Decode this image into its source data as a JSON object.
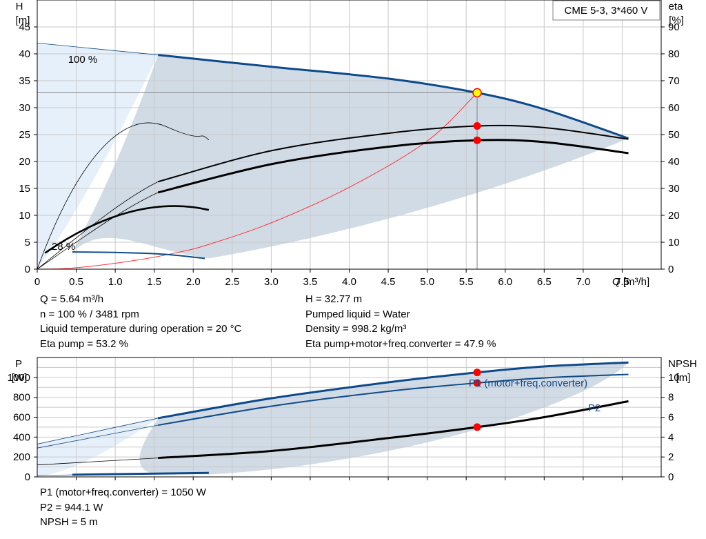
{
  "legend_box": "CME 5-3, 3*460 V",
  "upper": {
    "y_left_label": [
      "H",
      "[m]"
    ],
    "y_right_label": [
      "eta",
      "[%]"
    ],
    "x_label": "Q [m³/h]",
    "x_ticks": [
      "0",
      "0.5",
      "1.0",
      "1.5",
      "2.0",
      "2.5",
      "3.0",
      "3.5",
      "4.0",
      "4.5",
      "5.0",
      "5.5",
      "6.0",
      "6.5",
      "7.0",
      "7.5"
    ],
    "y_left_ticks": [
      "0",
      "5",
      "10",
      "15",
      "20",
      "25",
      "30",
      "35",
      "40",
      "45"
    ],
    "y_right_ticks": [
      "0",
      "10",
      "20",
      "30",
      "40",
      "50",
      "60",
      "70",
      "80",
      "90"
    ],
    "speed_max_label": "100 %",
    "speed_min_label": "28 %"
  },
  "results_top": {
    "left": [
      "Q = 5.64 m³/h",
      "n = 100 % / 3481 rpm",
      "Liquid temperature during operation = 20 °C",
      "Eta pump = 53.2 %"
    ],
    "right": [
      "H = 32.77 m",
      "Pumped liquid = Water",
      "Density = 998.2 kg/m³",
      "Eta pump+motor+freq.converter = 47.9 %"
    ]
  },
  "lower": {
    "y_left_label": [
      "P",
      "[W]"
    ],
    "y_right_label": [
      "NPSH",
      "[m]"
    ],
    "y_left_ticks": [
      "0",
      "200",
      "400",
      "600",
      "800",
      "1000"
    ],
    "y_right_ticks": [
      "0",
      "2",
      "4",
      "6",
      "8",
      "10"
    ],
    "p1_label": "P1 (motor+freq.converter)",
    "p2_label": "P2"
  },
  "results_bottom": [
    "P1 (motor+freq.converter) = 1050 W",
    "P2 = 944.1 W",
    "NPSH = 5 m"
  ],
  "colors": {
    "curve_blue": "#0d4a8a",
    "area": "#d1dbe6",
    "area_light": "#e6f0fa",
    "grid": "#c8c8c8",
    "duty_point": "#ff0000",
    "system_curve": "#ff3030"
  },
  "chart_data": [
    {
      "type": "line",
      "title": "",
      "xlabel": "Q [m³/h]",
      "ylabel": "H [m]",
      "ylabel_right": "eta [%]",
      "xlim": [
        0,
        8.0
      ],
      "ylim": [
        0,
        50
      ],
      "ylim_right": [
        0,
        100
      ],
      "grid": true,
      "series": [
        {
          "name": "100 %",
          "axis": "left",
          "x": [
            0,
            1.55,
            3.0,
            4.5,
            5.64,
            6.5,
            7.58
          ],
          "y": [
            42,
            39.8,
            37.6,
            35.4,
            32.77,
            29.7,
            24.3
          ]
        },
        {
          "name": "28 %",
          "axis": "left",
          "x": [
            0,
            0.45,
            1.0,
            1.6,
            2.15
          ],
          "y": [
            3.3,
            3.2,
            3.1,
            2.8,
            2.0
          ]
        },
        {
          "name": "",
          "axis": "right",
          "x": [
            0,
            1.55,
            3.0,
            4.5,
            5.64,
            6.5,
            7.58
          ],
          "y": [
            0,
            32.5,
            44.0,
            50.5,
            53.2,
            52.6,
            48.3
          ]
        },
        {
          "name": "",
          "axis": "right",
          "x": [
            0,
            1.55,
            3.0,
            4.5,
            5.64,
            6.5,
            7.58
          ],
          "y": [
            0,
            28.5,
            39.0,
            45.5,
            47.9,
            47.2,
            43.1
          ]
        },
        {
          "name": "",
          "axis": "left",
          "x": [
            0,
            0.45,
            1.2,
            1.8,
            2.2,
            3.0,
            4.0,
            5.0,
            5.64
          ],
          "y": [
            0,
            0.2,
            1.5,
            3.1,
            4.6,
            8.6,
            15.2,
            23.8,
            32.77
          ]
        }
      ],
      "duty_point": {
        "x": 5.64,
        "y": 32.77
      }
    },
    {
      "type": "line",
      "title": "",
      "ylabel": "P [W]",
      "ylabel_right": "NPSH [m]",
      "xlim": [
        0,
        8.0
      ],
      "ylim": [
        0,
        1200
      ],
      "ylim_right": [
        0,
        12
      ],
      "grid": true,
      "series": [
        {
          "name": "P1 (motor+freq.converter)",
          "axis": "left",
          "x": [
            0,
            1.55,
            3.0,
            4.5,
            5.64,
            6.5,
            7.58
          ],
          "y": [
            330,
            590,
            790,
            950,
            1050,
            1110,
            1150
          ]
        },
        {
          "name": "P2",
          "axis": "left",
          "x": [
            0,
            1.55,
            3.0,
            4.5,
            5.64,
            6.5,
            7.58
          ],
          "y": [
            290,
            520,
            710,
            860,
            944.1,
            995,
            1030
          ]
        },
        {
          "name": "",
          "axis": "right",
          "x": [
            0,
            1.55,
            3.0,
            4.5,
            5.64,
            6.5,
            7.58
          ],
          "y": [
            1.2,
            1.9,
            2.6,
            3.9,
            5.0,
            6.0,
            7.6
          ]
        }
      ],
      "duty_point": {
        "x": 5.64,
        "p1": 1050,
        "p2": 944.1,
        "npsh": 5
      }
    }
  ]
}
